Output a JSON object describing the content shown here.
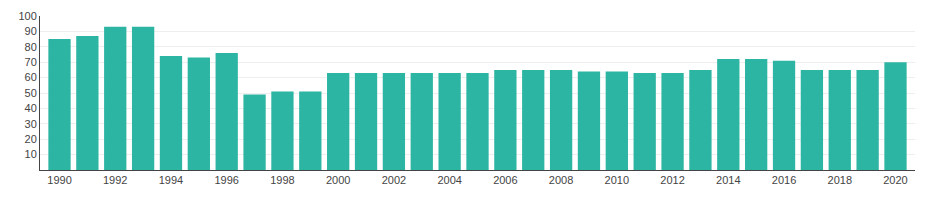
{
  "chart_data": {
    "type": "bar",
    "x": [
      1990,
      1991,
      1992,
      1993,
      1994,
      1995,
      1996,
      1997,
      1998,
      1999,
      2000,
      2001,
      2002,
      2003,
      2004,
      2005,
      2006,
      2007,
      2008,
      2009,
      2010,
      2011,
      2012,
      2013,
      2014,
      2015,
      2016,
      2017,
      2018,
      2019,
      2020
    ],
    "values": [
      85,
      87,
      93,
      93,
      74,
      73,
      76,
      49,
      51,
      51,
      63,
      63,
      63,
      63,
      63,
      63,
      65,
      65,
      65,
      64,
      64,
      63,
      63,
      65,
      72,
      72,
      71,
      65,
      65,
      65,
      70
    ],
    "color": "#2db5a3",
    "xlim": [
      1989.3,
      2020.7
    ],
    "xticks": [
      1990,
      1992,
      1994,
      1996,
      1998,
      2000,
      2002,
      2004,
      2006,
      2008,
      2010,
      2012,
      2014,
      2016,
      2018,
      2020
    ],
    "ylim": [
      0,
      100
    ],
    "yticks": [
      10,
      20,
      30,
      40,
      50,
      60,
      70,
      80,
      90,
      100
    ],
    "grid": true
  }
}
